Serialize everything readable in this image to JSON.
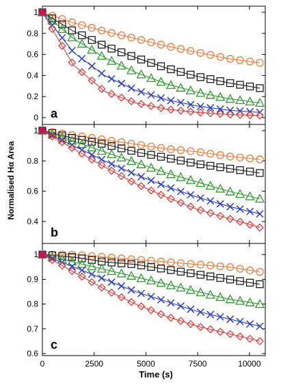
{
  "chart_data": [
    {
      "type": "scatter",
      "panel_label": "a",
      "ylim": [
        0,
        1
      ],
      "yticks": [
        0,
        0.2,
        0.4,
        0.6,
        0.8,
        1
      ],
      "ytick_labels": [
        "0",
        "0.2",
        "0.4",
        "0.6",
        "0.8",
        "1"
      ],
      "xlim": [
        0,
        10500
      ],
      "series": [
        {
          "marker": "circle",
          "color": "#f07a3a",
          "x": [
            0,
            1500,
            3000,
            4500,
            6000,
            7500,
            9000,
            10500
          ],
          "values": [
            1.0,
            0.9,
            0.82,
            0.75,
            0.68,
            0.62,
            0.56,
            0.52
          ]
        },
        {
          "marker": "square",
          "color": "#1a1a1a",
          "x": [
            0,
            1500,
            3000,
            4500,
            6000,
            7500,
            9000,
            10500
          ],
          "values": [
            1.0,
            0.82,
            0.68,
            0.57,
            0.47,
            0.39,
            0.33,
            0.28
          ]
        },
        {
          "marker": "triangle",
          "color": "#2e9a2e",
          "x": [
            0,
            1500,
            3000,
            4500,
            6000,
            7500,
            9000,
            10500
          ],
          "values": [
            1.0,
            0.75,
            0.57,
            0.43,
            0.32,
            0.24,
            0.18,
            0.14
          ]
        },
        {
          "marker": "cross",
          "color": "#2a3fbf",
          "x": [
            0,
            1500,
            3000,
            4500,
            6000,
            7500,
            9000,
            10500
          ],
          "values": [
            1.0,
            0.62,
            0.4,
            0.26,
            0.17,
            0.11,
            0.07,
            0.05
          ]
        },
        {
          "marker": "diamond",
          "color": "#e03a3a",
          "x": [
            0,
            1500,
            3000,
            4500,
            6000,
            7500,
            9000,
            10500
          ],
          "values": [
            1.0,
            0.5,
            0.25,
            0.14,
            0.08,
            0.05,
            0.03,
            0.02
          ]
        }
      ]
    },
    {
      "type": "scatter",
      "panel_label": "b",
      "ylim": [
        0.3,
        1
      ],
      "yticks": [
        0.4,
        0.6,
        0.8,
        1
      ],
      "ytick_labels": [
        "0.4",
        "0.6",
        "0.8",
        "1"
      ],
      "xlim": [
        0,
        10500
      ],
      "series": [
        {
          "marker": "circle",
          "color": "#f07a3a",
          "x": [
            0,
            1500,
            3000,
            4500,
            6000,
            7500,
            9000,
            10500
          ],
          "values": [
            1.0,
            0.97,
            0.94,
            0.91,
            0.88,
            0.86,
            0.83,
            0.81
          ]
        },
        {
          "marker": "square",
          "color": "#1a1a1a",
          "x": [
            0,
            1500,
            3000,
            4500,
            6000,
            7500,
            9000,
            10500
          ],
          "values": [
            1.0,
            0.95,
            0.91,
            0.86,
            0.82,
            0.78,
            0.75,
            0.72
          ]
        },
        {
          "marker": "triangle",
          "color": "#2e9a2e",
          "x": [
            0,
            1500,
            3000,
            4500,
            6000,
            7500,
            9000,
            10500
          ],
          "values": [
            1.0,
            0.93,
            0.86,
            0.79,
            0.72,
            0.66,
            0.6,
            0.55
          ]
        },
        {
          "marker": "cross",
          "color": "#2a3fbf",
          "x": [
            0,
            1500,
            3000,
            4500,
            6000,
            7500,
            9000,
            10500
          ],
          "values": [
            1.0,
            0.9,
            0.8,
            0.71,
            0.63,
            0.56,
            0.5,
            0.45
          ]
        },
        {
          "marker": "diamond",
          "color": "#e03a3a",
          "x": [
            0,
            1500,
            3000,
            4500,
            6000,
            7500,
            9000,
            10500
          ],
          "values": [
            1.0,
            0.88,
            0.76,
            0.65,
            0.56,
            0.48,
            0.42,
            0.36
          ]
        }
      ]
    },
    {
      "type": "scatter",
      "panel_label": "c",
      "ylim": [
        0.6,
        1.02
      ],
      "yticks": [
        0.6,
        0.7,
        0.8,
        0.9,
        1
      ],
      "ytick_labels": [
        "0.6",
        "0.7",
        "0.8",
        "0.9",
        "1"
      ],
      "xlim": [
        0,
        10500
      ],
      "xticks": [
        0,
        2500,
        5000,
        7500,
        10000
      ],
      "xtick_labels": [
        "0",
        "2500",
        "5000",
        "7500",
        "10000"
      ],
      "series": [
        {
          "marker": "circle",
          "color": "#f07a3a",
          "x": [
            0,
            1500,
            3000,
            4500,
            6000,
            7500,
            9000,
            10500
          ],
          "values": [
            1.0,
            1.0,
            0.99,
            0.98,
            0.97,
            0.96,
            0.95,
            0.93
          ]
        },
        {
          "marker": "square",
          "color": "#1a1a1a",
          "x": [
            0,
            1500,
            3000,
            4500,
            6000,
            7500,
            9000,
            10500
          ],
          "values": [
            1.0,
            0.99,
            0.97,
            0.96,
            0.94,
            0.92,
            0.9,
            0.88
          ]
        },
        {
          "marker": "triangle",
          "color": "#2e9a2e",
          "x": [
            0,
            1500,
            3000,
            4500,
            6000,
            7500,
            9000,
            10500
          ],
          "values": [
            1.0,
            0.97,
            0.94,
            0.91,
            0.88,
            0.85,
            0.82,
            0.8
          ]
        },
        {
          "marker": "cross",
          "color": "#2a3fbf",
          "x": [
            0,
            1500,
            3000,
            4500,
            6000,
            7500,
            9000,
            10500
          ],
          "values": [
            1.0,
            0.95,
            0.9,
            0.85,
            0.81,
            0.77,
            0.74,
            0.71
          ]
        },
        {
          "marker": "diamond",
          "color": "#e03a3a",
          "x": [
            0,
            1500,
            3000,
            4500,
            6000,
            7500,
            9000,
            10500
          ],
          "values": [
            1.0,
            0.93,
            0.86,
            0.8,
            0.75,
            0.71,
            0.68,
            0.65
          ]
        }
      ]
    }
  ],
  "ylabel": "Normalised Hα Area",
  "xlabel": "Time (s)"
}
